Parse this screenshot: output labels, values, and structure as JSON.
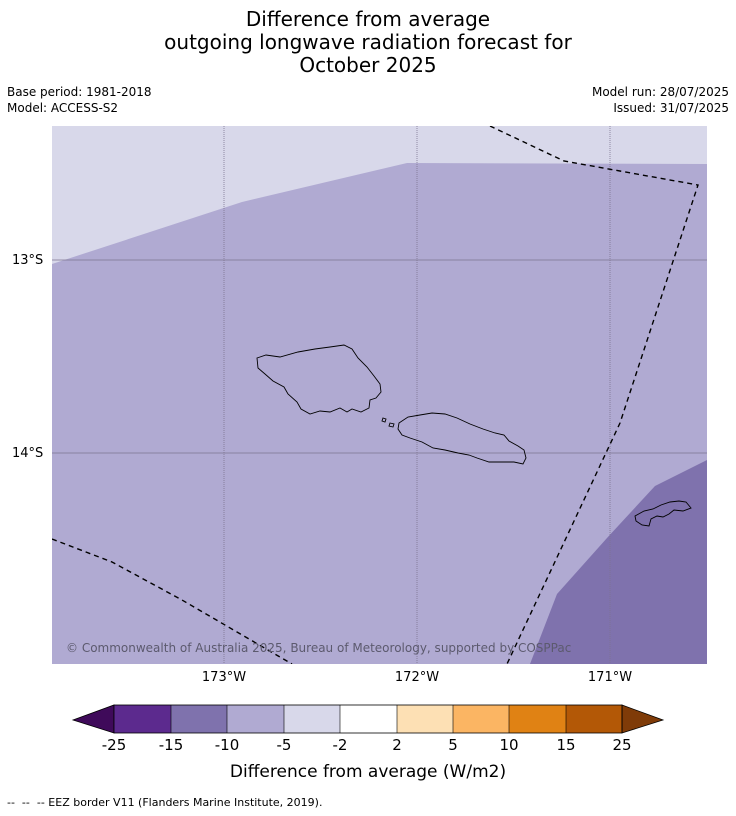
{
  "title": {
    "line1": "Difference from average",
    "line2": "outgoing longwave radiation forecast for",
    "line3": "October 2025"
  },
  "meta": {
    "base_period": "Base period: 1981-2018",
    "model": "Model: ACCESS-S2",
    "model_run": "Model run: 28/07/2025",
    "issued": "Issued: 31/07/2025"
  },
  "map": {
    "lat_labels": [
      "13°S",
      "14°S"
    ],
    "lon_labels": [
      "173°W",
      "172°W",
      "171°W"
    ],
    "copyright": "© Commonwealth of Australia 2025, Bureau of Meteorology, supported by COSPPac",
    "region_colors": {
      "light": "#d8d8ea",
      "mid": "#b0aad2",
      "dark": "#7f72ad"
    }
  },
  "colorbar": {
    "ticks": [
      "-25",
      "-15",
      "-10",
      "-5",
      "-2",
      "2",
      "5",
      "10",
      "15",
      "25"
    ],
    "colors": [
      "#3f0a5a",
      "#5c2a8e",
      "#7f72ad",
      "#b0aad2",
      "#d8d8ea",
      "#ffffff",
      "#fde0b4",
      "#fbb563",
      "#e08214",
      "#b35806",
      "#7f3b08"
    ],
    "label": "Difference from average (W/m2)"
  },
  "legend_note": "--  --  -- EEZ border V11 (Flanders Marine Institute, 2019)."
}
